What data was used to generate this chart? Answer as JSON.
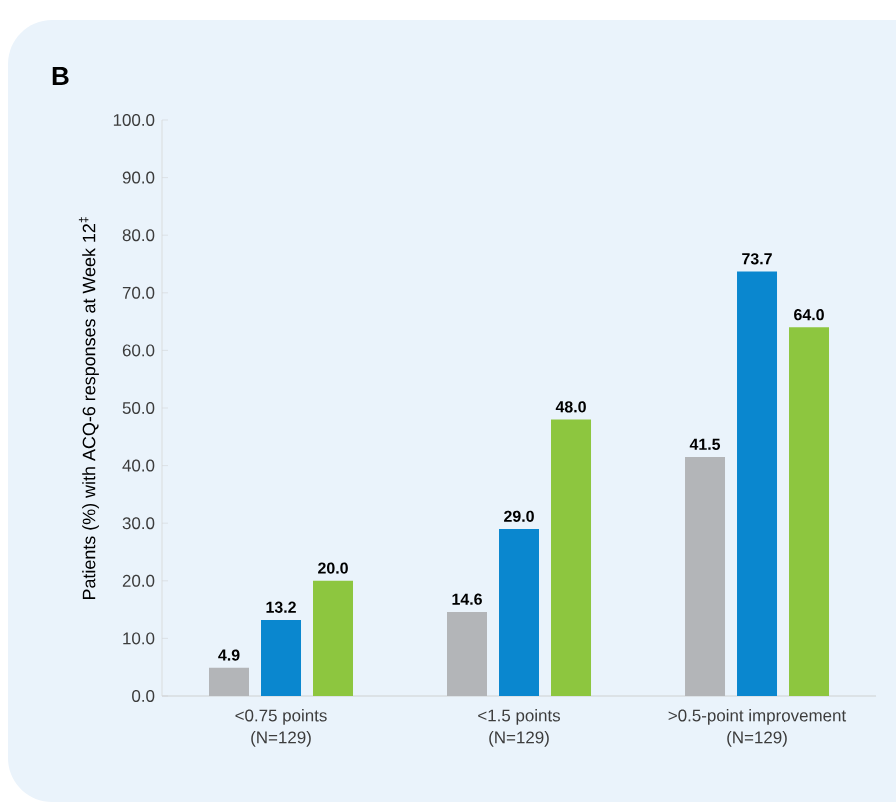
{
  "chart_data": {
    "type": "bar",
    "title": "B",
    "ylabel": "Patients (%) with ACQ-6 responses at Week 12$^{‡}$",
    "categories": [
      "<0.75 points\n(N=129)",
      "<1.5 points\n(N=129)",
      ">0.5-point improvement\n(N=129)"
    ],
    "series": [
      {
        "color": "#b3b5b8",
        "values": [
          4.9,
          14.6,
          41.5
        ],
        "value_labels": [
          "4.9",
          "14.6",
          "41.5"
        ]
      },
      {
        "color": "#0a87cf",
        "values": [
          13.2,
          29,
          73.7
        ],
        "value_labels": [
          "13.2",
          "29.0",
          "73.7"
        ]
      },
      {
        "color": "#8dc63f",
        "values": [
          20,
          48,
          64
        ],
        "value_labels": [
          "20.0",
          "48.0",
          "64.0"
        ]
      }
    ],
    "ylim": [
      0,
      100
    ],
    "yticks": [
      {
        "value": 0,
        "label": "0.0"
      },
      {
        "value": 10,
        "label": "10.0"
      },
      {
        "value": 20,
        "label": "20.0"
      },
      {
        "value": 30,
        "label": "30.0"
      },
      {
        "value": 40,
        "label": "40.0"
      },
      {
        "value": 50,
        "label": "50.0"
      },
      {
        "value": 60,
        "label": "60.0"
      },
      {
        "value": 70,
        "label": "70.0"
      },
      {
        "value": 80,
        "label": "80.0"
      },
      {
        "value": 90,
        "label": "90.0"
      },
      {
        "value": 100,
        "label": "100.0"
      }
    ],
    "grid": false
  }
}
